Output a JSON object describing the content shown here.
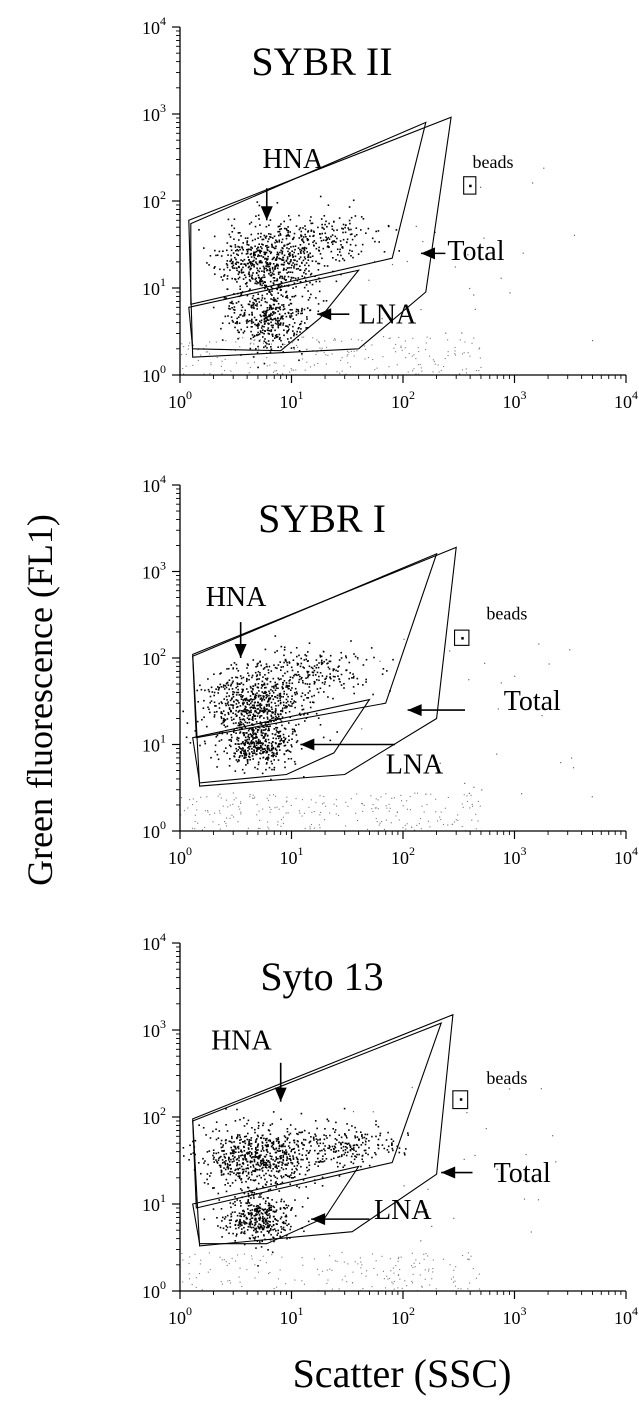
{
  "chart_data": {
    "type": "scatter",
    "shared_ylabel": "Green fluorescence (FL1)",
    "shared_xlabel": "Scatter (SSC)",
    "x_scale": "log",
    "y_scale": "log",
    "xlim": [
      1,
      10000
    ],
    "ylim": [
      1,
      10000
    ],
    "ticks": [
      1,
      10,
      100,
      1000,
      10000
    ],
    "tick_base": "10",
    "tick_exponents": [
      "0",
      "1",
      "2",
      "3",
      "4"
    ],
    "grid": false,
    "panels": [
      {
        "title": "SYBR II",
        "seed": 11,
        "clusters": [
          {
            "name": "HNA",
            "cx": 6,
            "cy": 20,
            "sx": 0.23,
            "sy": 0.22,
            "n": 650
          },
          {
            "name": "HNA-tail",
            "cx": 20,
            "cy": 40,
            "sx": 0.25,
            "sy": 0.14,
            "n": 180
          },
          {
            "name": "LNA",
            "cx": 6,
            "cy": 4.5,
            "sx": 0.18,
            "sy": 0.17,
            "n": 380
          }
        ],
        "noise_n": 220,
        "gates": {
          "total": [
            [
              1.2,
              60
            ],
            [
              270,
              920
            ],
            [
              160,
              9
            ],
            [
              40,
              2
            ],
            [
              1.3,
              1.6
            ]
          ],
          "hna": [
            [
              1.25,
              55
            ],
            [
              160,
              800
            ],
            [
              80,
              22
            ],
            [
              1.25,
              6.5
            ]
          ],
          "lna": [
            [
              1.2,
              6
            ],
            [
              40,
              16
            ],
            [
              18,
              4.5
            ],
            [
              8,
              1.9
            ],
            [
              1.3,
              2
            ]
          ],
          "beads": [
            [
              350,
              120
            ],
            [
              450,
              190
            ]
          ]
        },
        "bead_point": [
          400,
          150
        ],
        "labels": [
          {
            "text": "HNA",
            "x": 5.5,
            "y": 240
          },
          {
            "text": "LNA",
            "x": 40,
            "y": 3.9
          },
          {
            "text": "Total",
            "x": 250,
            "y": 21
          },
          {
            "text": "beads",
            "x": 420,
            "y": 240
          }
        ],
        "arrows": [
          {
            "from": [
              6,
              140
            ],
            "to": [
              6,
              60
            ]
          },
          {
            "from": [
              33,
              5
            ],
            "to": [
              17,
              5
            ]
          },
          {
            "from": [
              240,
              25
            ],
            "to": [
              145,
              25
            ]
          }
        ]
      },
      {
        "title": "SYBR I",
        "seed": 23,
        "clusters": [
          {
            "name": "HNA",
            "cx": 4.5,
            "cy": 30,
            "sx": 0.22,
            "sy": 0.2,
            "n": 650
          },
          {
            "name": "HNA-tail",
            "cx": 15,
            "cy": 70,
            "sx": 0.26,
            "sy": 0.14,
            "n": 200
          },
          {
            "name": "LNA",
            "cx": 5,
            "cy": 10,
            "sx": 0.17,
            "sy": 0.13,
            "n": 380
          }
        ],
        "noise_n": 230,
        "gates": {
          "total": [
            [
              1.3,
              110
            ],
            [
              300,
              1900
            ],
            [
              200,
              20
            ],
            [
              30,
              4.5
            ],
            [
              1.5,
              3.3
            ]
          ],
          "hna": [
            [
              1.3,
              105
            ],
            [
              200,
              1600
            ],
            [
              70,
              30
            ],
            [
              1.4,
              12
            ]
          ],
          "lna": [
            [
              1.3,
              12
            ],
            [
              50,
              33
            ],
            [
              24,
              8
            ],
            [
              9,
              4.5
            ],
            [
              1.5,
              3.6
            ]
          ],
          "beads": [
            [
              290,
              140
            ],
            [
              390,
              210
            ]
          ]
        },
        "bead_point": [
          340,
          170
        ],
        "labels": [
          {
            "text": "HNA",
            "x": 1.7,
            "y": 400
          },
          {
            "text": "LNA",
            "x": 70,
            "y": 4.6
          },
          {
            "text": "Total",
            "x": 800,
            "y": 25
          },
          {
            "text": "beads",
            "x": 560,
            "y": 280
          }
        ],
        "arrows": [
          {
            "from": [
              3.5,
              260
            ],
            "to": [
              3.5,
              100
            ]
          },
          {
            "from": [
              85,
              10
            ],
            "to": [
              12,
              10
            ]
          },
          {
            "from": [
              360,
              25
            ],
            "to": [
              110,
              25
            ]
          }
        ]
      },
      {
        "title": "Syto 13",
        "seed": 37,
        "clusters": [
          {
            "name": "HNA",
            "cx": 5,
            "cy": 35,
            "sx": 0.25,
            "sy": 0.18,
            "n": 650
          },
          {
            "name": "HNA-tail",
            "cx": 25,
            "cy": 50,
            "sx": 0.28,
            "sy": 0.12,
            "n": 220
          },
          {
            "name": "LNA",
            "cx": 5,
            "cy": 7,
            "sx": 0.17,
            "sy": 0.15,
            "n": 380
          }
        ],
        "noise_n": 180,
        "gates": {
          "total": [
            [
              1.3,
              95
            ],
            [
              280,
              1500
            ],
            [
              200,
              22
            ],
            [
              35,
              4.8
            ],
            [
              1.5,
              3.3
            ]
          ],
          "hna": [
            [
              1.3,
              90
            ],
            [
              220,
              1200
            ],
            [
              80,
              30
            ],
            [
              1.4,
              9
            ]
          ],
          "lna": [
            [
              1.3,
              10
            ],
            [
              40,
              27
            ],
            [
              20,
              7
            ],
            [
              6,
              3.5
            ],
            [
              1.5,
              3.5
            ]
          ],
          "beads": [
            [
              280,
              125
            ],
            [
              380,
              200
            ]
          ]
        },
        "bead_point": [
          330,
          160
        ],
        "labels": [
          {
            "text": "HNA",
            "x": 1.9,
            "y": 600
          },
          {
            "text": "LNA",
            "x": 55,
            "y": 6.7
          },
          {
            "text": "Total",
            "x": 650,
            "y": 18
          },
          {
            "text": "beads",
            "x": 560,
            "y": 240
          }
        ],
        "arrows": [
          {
            "from": [
              8,
              420
            ],
            "to": [
              8,
              150
            ]
          },
          {
            "from": [
              50,
              6.7
            ],
            "to": [
              15,
              6.7
            ]
          },
          {
            "from": [
              420,
              23
            ],
            "to": [
              220,
              23
            ]
          }
        ]
      }
    ]
  }
}
